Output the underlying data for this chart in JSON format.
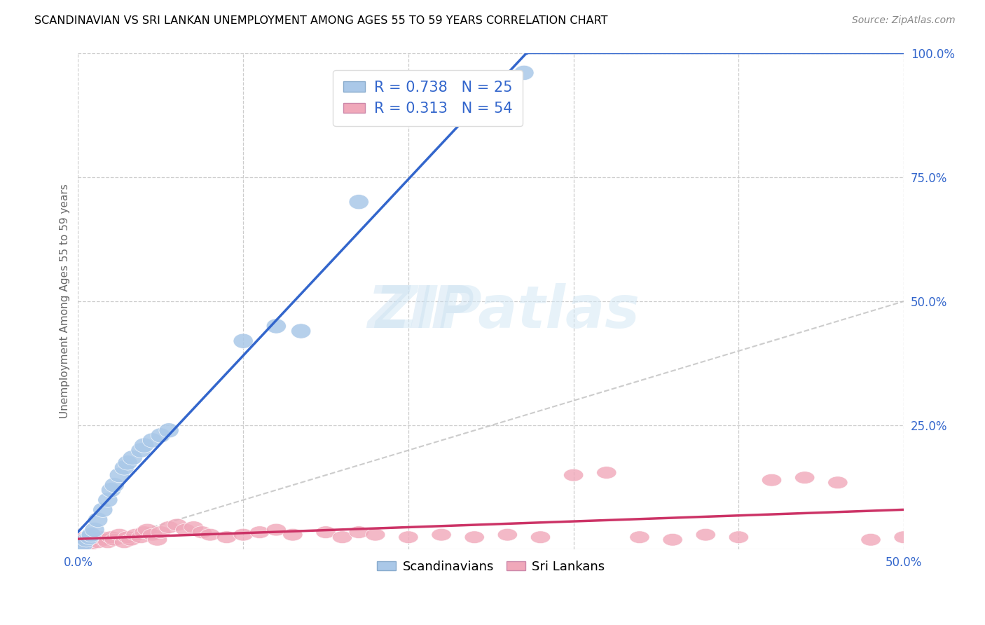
{
  "title": "SCANDINAVIAN VS SRI LANKAN UNEMPLOYMENT AMONG AGES 55 TO 59 YEARS CORRELATION CHART",
  "source": "Source: ZipAtlas.com",
  "ylabel": "Unemployment Among Ages 55 to 59 years",
  "legend_label1": "Scandinavians",
  "legend_label2": "Sri Lankans",
  "R1": 0.738,
  "N1": 25,
  "R2": 0.313,
  "N2": 54,
  "color_blue": "#aac8e8",
  "color_pink": "#f0a8ba",
  "line_blue": "#3366cc",
  "line_pink": "#cc3366",
  "line_diagonal": "#c0c0c0",
  "background": "#ffffff",
  "xlim": [
    0.0,
    0.5
  ],
  "ylim": [
    0.0,
    1.0
  ],
  "scandinavians_x": [
    0.001,
    0.003,
    0.005,
    0.007,
    0.008,
    0.01,
    0.012,
    0.015,
    0.018,
    0.02,
    0.022,
    0.025,
    0.028,
    0.03,
    0.033,
    0.038,
    0.04,
    0.045,
    0.05,
    0.055,
    0.1,
    0.12,
    0.135,
    0.17,
    0.27
  ],
  "scandinavians_y": [
    0.005,
    0.01,
    0.02,
    0.025,
    0.03,
    0.04,
    0.06,
    0.08,
    0.1,
    0.12,
    0.13,
    0.15,
    0.165,
    0.175,
    0.185,
    0.2,
    0.21,
    0.22,
    0.23,
    0.24,
    0.42,
    0.45,
    0.44,
    0.7,
    0.96
  ],
  "srilankans_x": [
    0.001,
    0.003,
    0.005,
    0.007,
    0.008,
    0.01,
    0.012,
    0.014,
    0.016,
    0.018,
    0.02,
    0.022,
    0.025,
    0.028,
    0.03,
    0.032,
    0.035,
    0.038,
    0.04,
    0.042,
    0.045,
    0.048,
    0.05,
    0.055,
    0.06,
    0.065,
    0.07,
    0.075,
    0.08,
    0.09,
    0.1,
    0.11,
    0.12,
    0.13,
    0.15,
    0.16,
    0.17,
    0.18,
    0.2,
    0.22,
    0.24,
    0.26,
    0.28,
    0.3,
    0.32,
    0.34,
    0.36,
    0.38,
    0.4,
    0.42,
    0.44,
    0.46,
    0.48,
    0.5
  ],
  "srilankans_y": [
    0.02,
    0.015,
    0.025,
    0.01,
    0.03,
    0.02,
    0.015,
    0.025,
    0.02,
    0.015,
    0.025,
    0.02,
    0.03,
    0.015,
    0.025,
    0.02,
    0.03,
    0.025,
    0.035,
    0.04,
    0.03,
    0.02,
    0.035,
    0.045,
    0.05,
    0.04,
    0.045,
    0.035,
    0.03,
    0.025,
    0.03,
    0.035,
    0.04,
    0.03,
    0.035,
    0.025,
    0.035,
    0.03,
    0.025,
    0.03,
    0.025,
    0.03,
    0.025,
    0.15,
    0.155,
    0.025,
    0.02,
    0.03,
    0.025,
    0.14,
    0.145,
    0.135,
    0.02,
    0.025
  ]
}
